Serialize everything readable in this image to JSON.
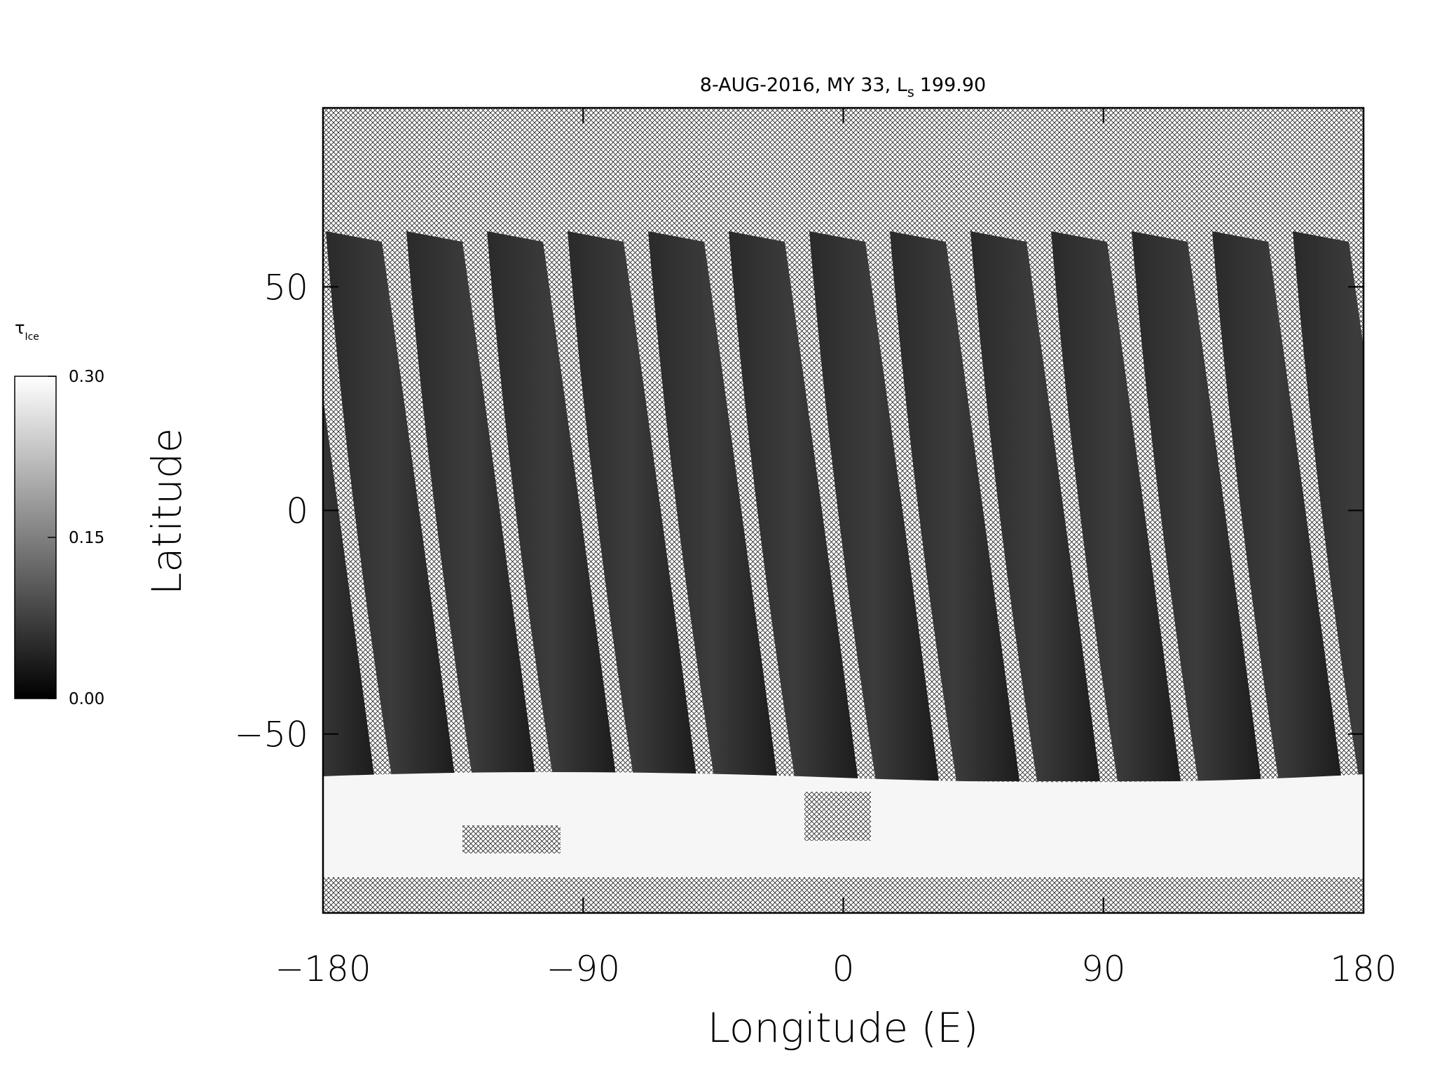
{
  "chart_data": {
    "type": "map",
    "title": {
      "text": "8-AUG-2016, MY 33,  L",
      "subscript": "s",
      "suffix": "199.90"
    },
    "xlabel": "Longitude (E)",
    "ylabel": "Latitude",
    "xlim": [
      -180,
      180
    ],
    "xticks": [
      {
        "value": -180,
        "label": "−180"
      },
      {
        "value": -90,
        "label": "−90"
      },
      0,
      90,
      180
    ],
    "ylim": [
      -90,
      90
    ],
    "yticks": [
      {
        "value": -50,
        "label": "−50"
      },
      0,
      50
    ],
    "colorbar": {
      "label": "τ",
      "label_subscript": "Ice",
      "lim": [
        0,
        0.3
      ],
      "ticks": [
        {
          "value": 0,
          "label": "0.00"
        },
        {
          "value": 0.15,
          "label": "0.15"
        },
        {
          "value": 0.3,
          "label": "0.30"
        }
      ]
    }
  }
}
